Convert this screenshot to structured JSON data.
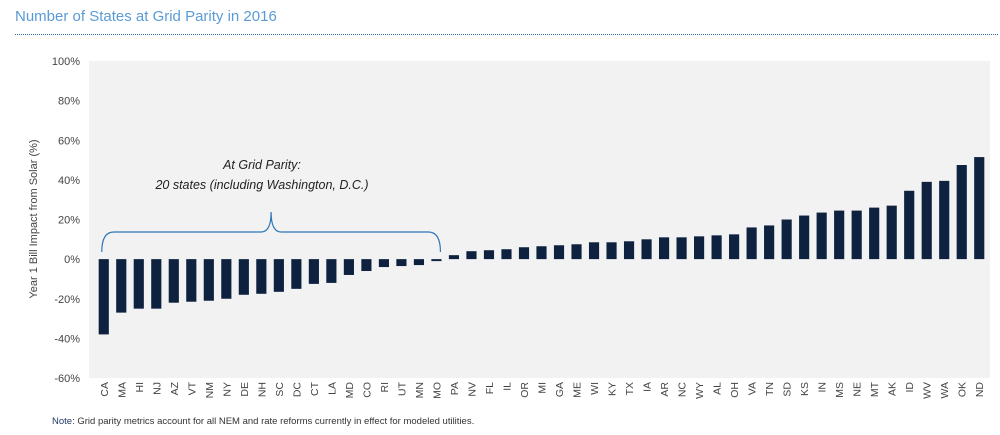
{
  "header": {
    "title": "Number of States at Grid Parity in 2016"
  },
  "note": {
    "label": "Note",
    "text": ": Grid parity metrics account for all NEM and rate reforms currently in effect for modeled utilities."
  },
  "annotation": {
    "line1": "At Grid Parity:",
    "line2": "20 states (including Washington, D.C.)"
  },
  "colors": {
    "bar": "#0e2240",
    "title": "#5b9bd5",
    "plot_bg": "#f2f2f2",
    "bracket": "#2e75b6"
  },
  "chart_data": {
    "type": "bar",
    "title": "Number of States at Grid Parity in 2016",
    "xlabel": "",
    "ylabel": "Year 1 Bill Impact from Solar (%)",
    "ylim": [
      -60,
      100
    ],
    "yticks": [
      -60,
      -40,
      -20,
      0,
      20,
      40,
      60,
      80,
      100
    ],
    "ytick_labels": [
      "-60%",
      "-40%",
      "-20%",
      "0%",
      "20%",
      "40%",
      "60%",
      "80%",
      "100%"
    ],
    "categories": [
      "CA",
      "MA",
      "HI",
      "NJ",
      "AZ",
      "VT",
      "NM",
      "NY",
      "DE",
      "NH",
      "SC",
      "DC",
      "CT",
      "LA",
      "MD",
      "CO",
      "RI",
      "UT",
      "MN",
      "MO",
      "PA",
      "NV",
      "FL",
      "IL",
      "OR",
      "MI",
      "GA",
      "ME",
      "WI",
      "KY",
      "TX",
      "IA",
      "AR",
      "NC",
      "WY",
      "AL",
      "OH",
      "VA",
      "TN",
      "SD",
      "KS",
      "IN",
      "MS",
      "NE",
      "MT",
      "AK",
      "ID",
      "WV",
      "WA",
      "OK",
      "ND"
    ],
    "values": [
      -38,
      -27,
      -25,
      -25,
      -22,
      -21.5,
      -21,
      -20,
      -18,
      -17.5,
      -16.5,
      -15,
      -12.5,
      -12,
      -8,
      -6,
      -4,
      -3.5,
      -3,
      -1,
      2,
      4,
      4.5,
      5,
      6,
      6.5,
      7,
      7.5,
      8.5,
      8.5,
      9,
      10,
      11,
      11,
      11.5,
      12,
      12.5,
      16,
      17,
      20,
      22,
      23.5,
      24.5,
      24.5,
      26,
      27,
      34.5,
      39,
      39.5,
      47.5,
      51.5
    ],
    "grid": false,
    "legend": "none"
  }
}
